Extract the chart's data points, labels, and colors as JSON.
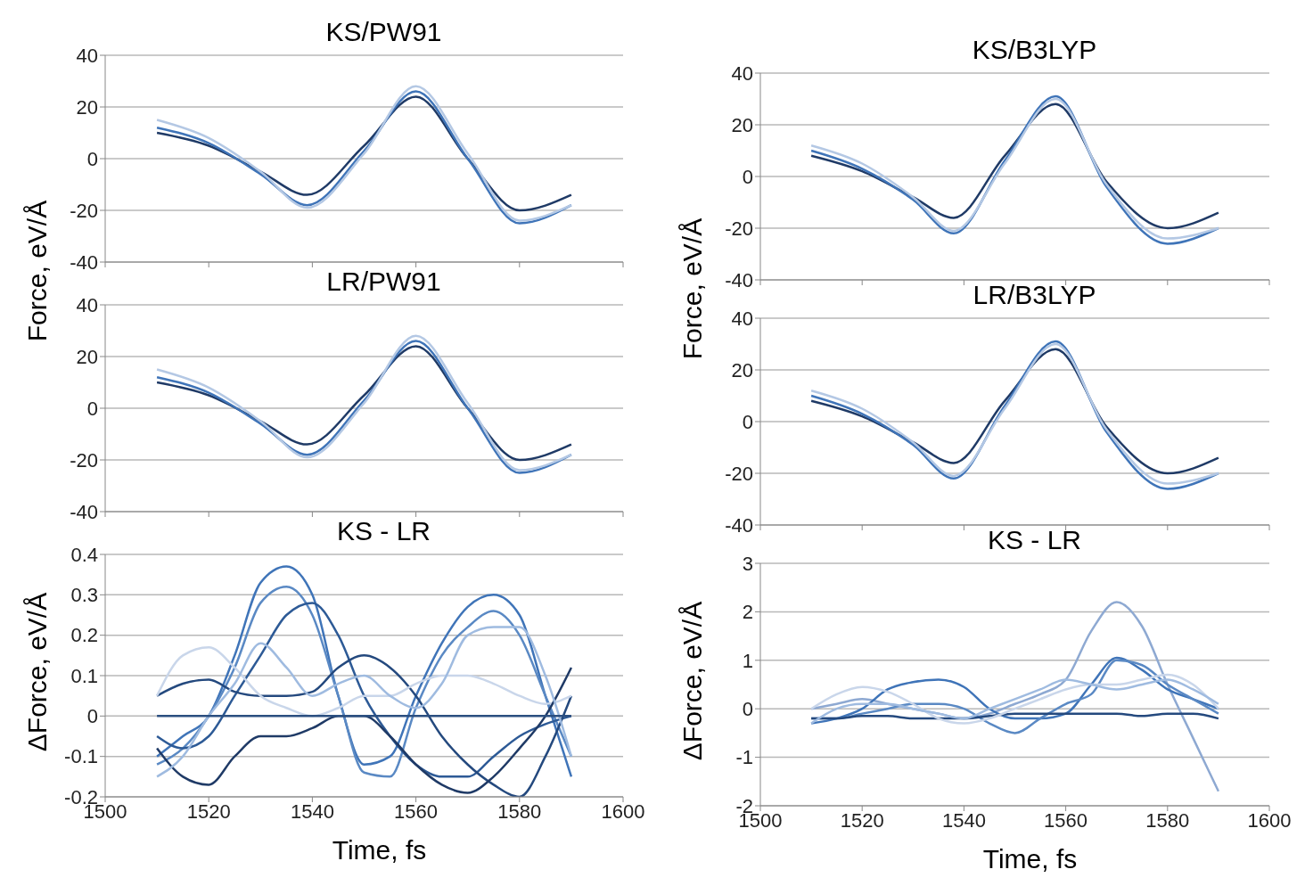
{
  "chart_data": [
    {
      "type": "line",
      "title": "KS/PW91",
      "ylabel": "Force, eV/Å",
      "x": [
        1510,
        1520,
        1530,
        1539,
        1550,
        1560,
        1570,
        1580,
        1590
      ],
      "xlim": [
        1500,
        1600
      ],
      "xticks": [
        1500,
        1520,
        1540,
        1560,
        1580,
        1600
      ],
      "ylim": [
        -40,
        40
      ],
      "yticks": [
        -40,
        -20,
        0,
        20,
        40
      ],
      "grid": "y",
      "tick_labels": "y",
      "series": [
        {
          "color": "#1f3a66",
          "values": [
            10,
            5,
            -5,
            -14,
            5,
            24,
            0,
            -20,
            -14
          ]
        },
        {
          "color": "#3f74b8",
          "values": [
            12,
            6,
            -6,
            -18,
            3,
            26,
            0,
            -25,
            -18
          ]
        },
        {
          "color": "#b4c8e4",
          "values": [
            15,
            8,
            -5,
            -19,
            2,
            28,
            2,
            -24,
            -18
          ]
        }
      ]
    },
    {
      "type": "line",
      "title": "KS/B3LYP",
      "ylabel": "Force, eV/Å",
      "x": [
        1510,
        1520,
        1530,
        1538,
        1548,
        1558,
        1568,
        1580,
        1590
      ],
      "xlim": [
        1500,
        1600
      ],
      "xticks": [
        1500,
        1520,
        1540,
        1560,
        1580,
        1600
      ],
      "ylim": [
        -40,
        40
      ],
      "yticks": [
        -40,
        -20,
        0,
        20,
        40
      ],
      "grid": "y",
      "tick_labels": "y",
      "series": [
        {
          "color": "#1f3a66",
          "values": [
            8,
            2,
            -8,
            -16,
            8,
            28,
            -2,
            -20,
            -14
          ]
        },
        {
          "color": "#3f74b8",
          "values": [
            10,
            3,
            -9,
            -22,
            6,
            31,
            -4,
            -26,
            -20
          ]
        },
        {
          "color": "#b4c8e4",
          "values": [
            12,
            5,
            -8,
            -21,
            5,
            30,
            -3,
            -24,
            -20
          ]
        }
      ]
    },
    {
      "type": "line",
      "title": "LR/PW91",
      "x": [
        1510,
        1520,
        1530,
        1539,
        1550,
        1560,
        1570,
        1580,
        1590
      ],
      "xlim": [
        1500,
        1600
      ],
      "xticks": [
        1500,
        1520,
        1540,
        1560,
        1580,
        1600
      ],
      "ylim": [
        -40,
        40
      ],
      "yticks": [
        -40,
        -20,
        0,
        20,
        40
      ],
      "grid": "y",
      "tick_labels": "y",
      "series": [
        {
          "color": "#1f3a66",
          "values": [
            10,
            5,
            -5,
            -14,
            5,
            24,
            0,
            -20,
            -14
          ]
        },
        {
          "color": "#3f74b8",
          "values": [
            12,
            6,
            -6,
            -18,
            3,
            26,
            0,
            -25,
            -18
          ]
        },
        {
          "color": "#b4c8e4",
          "values": [
            15,
            8,
            -5,
            -19,
            2,
            28,
            2,
            -24,
            -18
          ]
        }
      ]
    },
    {
      "type": "line",
      "title": "LR/B3LYP",
      "x": [
        1510,
        1520,
        1530,
        1538,
        1548,
        1558,
        1568,
        1580,
        1590
      ],
      "xlim": [
        1500,
        1600
      ],
      "xticks": [
        1500,
        1520,
        1540,
        1560,
        1580,
        1600
      ],
      "ylim": [
        -40,
        40
      ],
      "yticks": [
        -40,
        -20,
        0,
        20,
        40
      ],
      "grid": "y",
      "tick_labels": "y",
      "series": [
        {
          "color": "#1f3a66",
          "values": [
            8,
            2,
            -8,
            -16,
            8,
            28,
            -2,
            -20,
            -14
          ]
        },
        {
          "color": "#3f74b8",
          "values": [
            10,
            3,
            -9,
            -22,
            6,
            31,
            -4,
            -26,
            -20
          ]
        },
        {
          "color": "#b4c8e4",
          "values": [
            12,
            5,
            -8,
            -21,
            5,
            30,
            -3,
            -24,
            -20
          ]
        }
      ]
    },
    {
      "type": "line",
      "title": "KS - LR",
      "xlabel": "Time, fs",
      "ylabel": "ΔForce, eV/Å",
      "x": [
        1510,
        1515,
        1520,
        1525,
        1530,
        1535,
        1540,
        1545,
        1550,
        1555,
        1560,
        1565,
        1570,
        1575,
        1580,
        1585,
        1590
      ],
      "xlim": [
        1500,
        1600
      ],
      "xticks": [
        1500,
        1520,
        1540,
        1560,
        1580,
        1600
      ],
      "ylim": [
        -0.2,
        0.4
      ],
      "yticks": [
        {
          "value": -0.2,
          "label": "-0.2"
        },
        {
          "value": -0.1,
          "label": "-0.1"
        },
        0,
        {
          "value": 0.1,
          "label": "0.1"
        },
        {
          "value": 0.2,
          "label": "0.2"
        },
        {
          "value": 0.3,
          "label": "0.3"
        },
        {
          "value": 0.4,
          "label": "0.4"
        }
      ],
      "grid": "y",
      "series": [
        {
          "color": "#3f74b8",
          "values": [
            -0.1,
            -0.05,
            0,
            0.15,
            0.33,
            0.37,
            0.3,
            0.05,
            -0.12,
            -0.1,
            0.05,
            0.18,
            0.27,
            0.3,
            0.25,
            0.05,
            -0.15
          ]
        },
        {
          "color": "#5a89c4",
          "values": [
            -0.12,
            -0.08,
            0,
            0.12,
            0.28,
            0.32,
            0.25,
            0.05,
            -0.14,
            -0.15,
            0.02,
            0.15,
            0.22,
            0.26,
            0.2,
            0.05,
            -0.1
          ]
        },
        {
          "color": "#2d5a96",
          "values": [
            -0.05,
            -0.08,
            -0.05,
            0.05,
            0.15,
            0.25,
            0.28,
            0.2,
            0.05,
            -0.05,
            -0.12,
            -0.15,
            -0.15,
            -0.1,
            -0.05,
            -0.02,
            0
          ]
        },
        {
          "color": "#24497e",
          "values": [
            0.05,
            0.08,
            0.09,
            0.06,
            0.05,
            0.05,
            0.06,
            0.12,
            0.15,
            0.12,
            0.05,
            -0.05,
            -0.12,
            -0.17,
            -0.2,
            -0.1,
            0.05
          ]
        },
        {
          "color": "#c9d6ea",
          "values": [
            0.05,
            0.15,
            0.17,
            0.12,
            0.05,
            0.02,
            0,
            0.02,
            0.05,
            0.05,
            0.08,
            0.1,
            0.1,
            0.08,
            0.05,
            0.03,
            0.05
          ]
        },
        {
          "color": "#1f3a66",
          "values": [
            -0.08,
            -0.15,
            -0.17,
            -0.1,
            -0.05,
            -0.05,
            -0.03,
            0,
            0,
            -0.05,
            -0.12,
            -0.17,
            -0.19,
            -0.15,
            -0.08,
            0,
            0.12
          ]
        },
        {
          "color": "#9fbbe0",
          "values": [
            -0.15,
            -0.1,
            0,
            0.08,
            0.18,
            0.12,
            0.05,
            0.08,
            0.1,
            0.05,
            0.02,
            0.08,
            0.2,
            0.22,
            0.22,
            0.1,
            -0.1
          ]
        },
        {
          "color": "#2b4f80",
          "values": [
            0,
            0,
            0,
            0,
            0,
            0,
            0,
            0,
            0,
            0,
            0,
            0,
            0,
            0,
            0,
            0,
            0
          ]
        }
      ]
    },
    {
      "type": "line",
      "title": "KS - LR",
      "xlabel": "Time, fs",
      "ylabel": "ΔForce, eV/Å",
      "x": [
        1510,
        1515,
        1520,
        1525,
        1530,
        1535,
        1540,
        1545,
        1550,
        1555,
        1560,
        1565,
        1570,
        1575,
        1580,
        1585,
        1590
      ],
      "xlim": [
        1500,
        1600
      ],
      "xticks": [
        1500,
        1520,
        1540,
        1560,
        1580,
        1600
      ],
      "ylim": [
        -2,
        3
      ],
      "yticks": [
        -2,
        -1,
        0,
        1,
        2,
        3
      ],
      "grid": "y",
      "series": [
        {
          "color": "#8ea9d2",
          "values": [
            0,
            0.1,
            0.2,
            0.1,
            0,
            -0.1,
            -0.2,
            -0.1,
            0.1,
            0.3,
            0.6,
            1.6,
            2.2,
            1.7,
            0.5,
            -0.6,
            -1.7
          ]
        },
        {
          "color": "#3f74b8",
          "values": [
            -0.3,
            -0.2,
            0,
            0.4,
            0.55,
            0.6,
            0.45,
            0,
            -0.2,
            -0.2,
            -0.1,
            0.5,
            1.05,
            0.8,
            0.4,
            0.2,
            0
          ]
        },
        {
          "color": "#5a89c4",
          "values": [
            -0.2,
            -0.2,
            -0.1,
            0,
            0.1,
            0.1,
            0,
            -0.3,
            -0.5,
            -0.2,
            0.1,
            0.3,
            1,
            0.9,
            0.5,
            0.2,
            -0.1
          ]
        },
        {
          "color": "#24497e",
          "values": [
            -0.2,
            -0.2,
            -0.15,
            -0.15,
            -0.2,
            -0.2,
            -0.2,
            -0.15,
            -0.1,
            -0.1,
            -0.1,
            -0.1,
            -0.1,
            -0.15,
            -0.1,
            -0.1,
            -0.2
          ]
        },
        {
          "color": "#c9d6ea",
          "values": [
            0,
            0.3,
            0.45,
            0.35,
            0.1,
            -0.2,
            -0.3,
            -0.2,
            0,
            0.2,
            0.4,
            0.5,
            0.5,
            0.6,
            0.7,
            0.5,
            0
          ]
        },
        {
          "color": "#9fbbe0",
          "values": [
            -0.3,
            0,
            0.1,
            0.1,
            0,
            -0.1,
            -0.2,
            0,
            0.2,
            0.4,
            0.6,
            0.5,
            0.4,
            0.5,
            0.6,
            0.4,
            0.1
          ]
        }
      ]
    }
  ]
}
